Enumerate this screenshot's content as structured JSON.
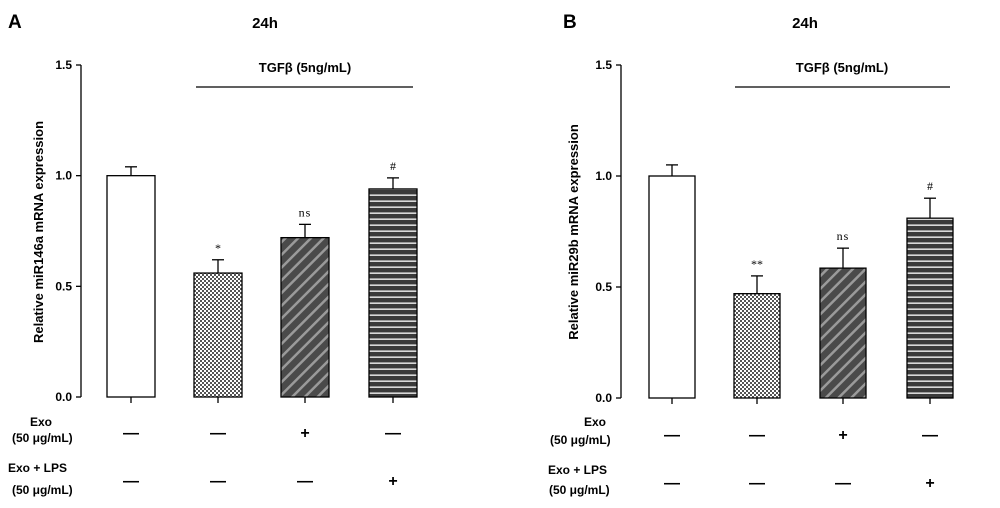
{
  "chart_data": [
    {
      "type": "bar",
      "panel": "A",
      "title": "24h",
      "treatment_label": "TGFβ (5ng/mL)",
      "ylabel": "Relative miR146a mRNA expression",
      "ylim": [
        0,
        1.5
      ],
      "yticks": [
        "0.0",
        "0.5",
        "1.0",
        "1.5"
      ],
      "values": [
        1.0,
        0.56,
        0.72,
        0.94
      ],
      "errors": [
        0.04,
        0.06,
        0.06,
        0.05
      ],
      "significance": [
        "",
        "*",
        "ns",
        "#"
      ],
      "patterns": [
        "white",
        "checker",
        "diagonal",
        "horizontal"
      ],
      "rows": [
        {
          "label_line1": "Exo",
          "label_line2": "(50 μg/mL)",
          "marks": [
            "—",
            "—",
            "+",
            "—"
          ]
        },
        {
          "label_line1": "Exo + LPS",
          "label_line2": "(50 μg/mL)",
          "marks": [
            "—",
            "—",
            "—",
            "+"
          ]
        }
      ]
    },
    {
      "type": "bar",
      "panel": "B",
      "title": "24h",
      "treatment_label": "TGFβ (5ng/mL)",
      "ylabel": "Relative miR29b mRNA expression",
      "ylim": [
        0,
        1.5
      ],
      "yticks": [
        "0.0",
        "0.5",
        "1.0",
        "1.5"
      ],
      "values": [
        1.0,
        0.47,
        0.585,
        0.81
      ],
      "errors": [
        0.05,
        0.08,
        0.09,
        0.09
      ],
      "significance": [
        "",
        "**",
        "ns",
        "#"
      ],
      "patterns": [
        "white",
        "checker",
        "diagonal",
        "horizontal"
      ],
      "rows": [
        {
          "label_line1": "Exo",
          "label_line2": "(50 μg/mL)",
          "marks": [
            "—",
            "—",
            "+",
            "—"
          ]
        },
        {
          "label_line1": "Exo + LPS",
          "label_line2": "(50 μg/mL)",
          "marks": [
            "—",
            "—",
            "—",
            "+"
          ]
        }
      ]
    }
  ]
}
